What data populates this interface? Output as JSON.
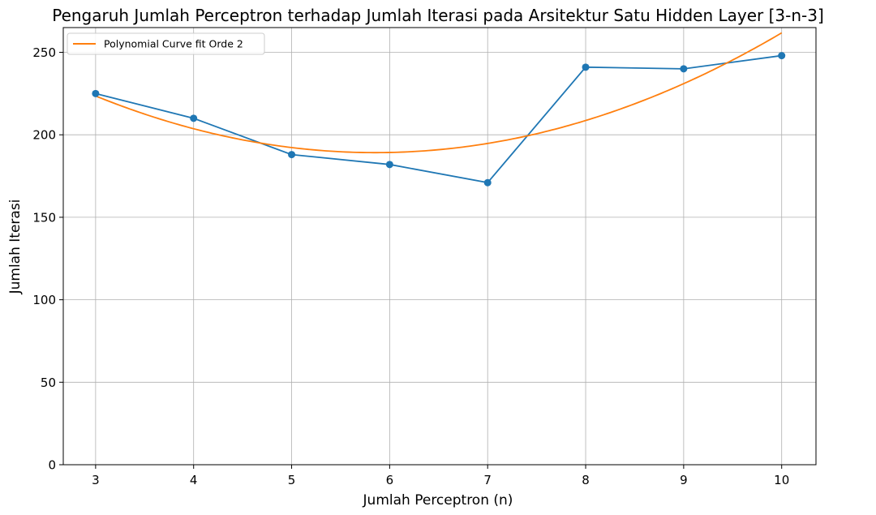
{
  "chart_data": {
    "type": "line",
    "title": "Pengaruh Jumlah Perceptron terhadap Jumlah Iterasi pada Arsitektur Satu Hidden Layer [3-n-3]",
    "xlabel": "Jumlah Perceptron (n)",
    "ylabel": "Jumlah Iterasi",
    "xlim": [
      2.67,
      10.35
    ],
    "ylim": [
      0,
      265
    ],
    "x_ticks": [
      3,
      4,
      5,
      6,
      7,
      8,
      9,
      10
    ],
    "y_ticks": [
      0,
      50,
      100,
      150,
      200,
      250
    ],
    "grid": true,
    "legend_position": "top-left",
    "series": [
      {
        "type": "line+scatter",
        "color": "#1f77b4",
        "x": [
          3,
          4,
          5,
          6,
          7,
          8,
          9,
          10
        ],
        "y": [
          225,
          210,
          188,
          182,
          171,
          241,
          240,
          248
        ]
      },
      {
        "type": "line",
        "name": "Polynomial Curve fit Orde 2",
        "color": "#ff7f0e",
        "polynomial_degree": 2
      }
    ]
  }
}
